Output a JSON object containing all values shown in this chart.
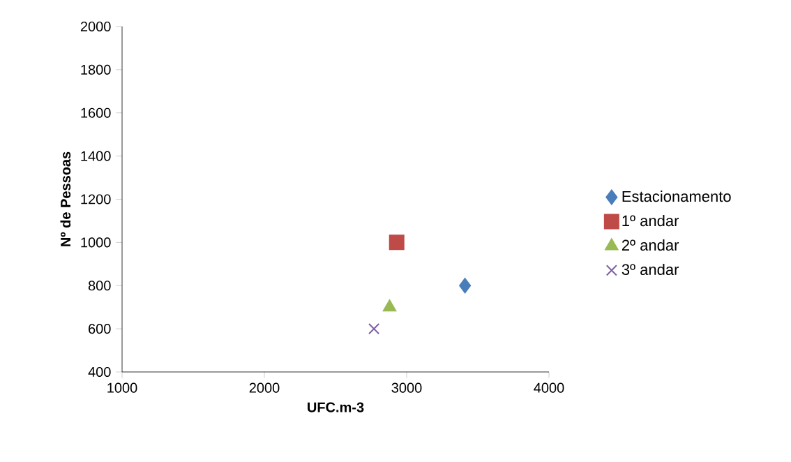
{
  "chart_data": {
    "type": "scatter",
    "xlabel": "UFC.m-3",
    "ylabel": "Nº de Pessoas",
    "xlim": [
      1000,
      4000
    ],
    "xticks": [
      1000,
      2000,
      3000,
      4000
    ],
    "ylim": [
      400,
      2000
    ],
    "yticks": [
      400,
      600,
      800,
      1000,
      1200,
      1400,
      1600,
      1800,
      2000
    ],
    "grid": false,
    "legend": "right",
    "series": [
      {
        "name": "Estacionamento",
        "color": "#4a7ebb",
        "marker": "diamond",
        "x": [
          3410
        ],
        "values": [
          800
        ]
      },
      {
        "name": "1º andar",
        "color": "#be4b48",
        "marker": "square",
        "x": [
          2930
        ],
        "values": [
          1000
        ]
      },
      {
        "name": "2º andar",
        "color": "#98b954",
        "marker": "triangle",
        "x": [
          2880
        ],
        "values": [
          700
        ]
      },
      {
        "name": "3º andar",
        "color": "#7d60a0",
        "marker": "cross",
        "x": [
          2770
        ],
        "values": [
          600
        ]
      }
    ]
  }
}
